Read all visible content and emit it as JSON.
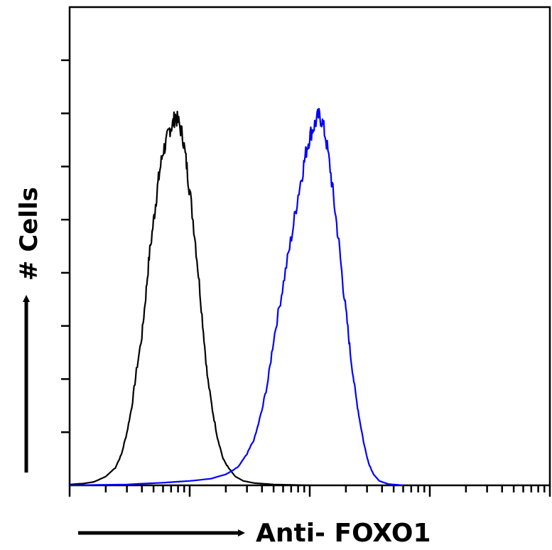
{
  "chart_data": {
    "type": "line",
    "chart_kind": "flow-cytometry-histogram",
    "title": "",
    "xlabel": "Anti- FOXO1",
    "ylabel": "# Cells",
    "x_scale": "log",
    "xlim": [
      1,
      10000
    ],
    "ylim": [
      0,
      100
    ],
    "grid": false,
    "legend": "none",
    "series": [
      {
        "color": "#000000",
        "points": [
          [
            1,
            0.2
          ],
          [
            1.3,
            0.4
          ],
          [
            1.6,
            0.8
          ],
          [
            2,
            2
          ],
          [
            2.4,
            4
          ],
          [
            2.7,
            7
          ],
          [
            3,
            12
          ],
          [
            3.3,
            18
          ],
          [
            3.6,
            26
          ],
          [
            4,
            34
          ],
          [
            4.3,
            43
          ],
          [
            4.6,
            52
          ],
          [
            5,
            60
          ],
          [
            5.3,
            66
          ],
          [
            5.6,
            71
          ],
          [
            6,
            76
          ],
          [
            6.4,
            78
          ],
          [
            6.8,
            81
          ],
          [
            7.2,
            82
          ],
          [
            7.6,
            84
          ],
          [
            8.2,
            82
          ],
          [
            8.8,
            79
          ],
          [
            9.4,
            73
          ],
          [
            10,
            67
          ],
          [
            11,
            57
          ],
          [
            12,
            46
          ],
          [
            13,
            35
          ],
          [
            14,
            25
          ],
          [
            15.5,
            17
          ],
          [
            17,
            11
          ],
          [
            19,
            6
          ],
          [
            21,
            4
          ],
          [
            24,
            2
          ],
          [
            28,
            1
          ],
          [
            35,
            0.5
          ],
          [
            50,
            0.2
          ],
          [
            100,
            0
          ]
        ]
      },
      {
        "color": "#0000ff",
        "points": [
          [
            1,
            0
          ],
          [
            3,
            0.2
          ],
          [
            6,
            0.6
          ],
          [
            10,
            1
          ],
          [
            15,
            1.5
          ],
          [
            20,
            2.5
          ],
          [
            25,
            4
          ],
          [
            30,
            7
          ],
          [
            35,
            11
          ],
          [
            40,
            17
          ],
          [
            45,
            24
          ],
          [
            50,
            33
          ],
          [
            57,
            42
          ],
          [
            64,
            50
          ],
          [
            72,
            58
          ],
          [
            80,
            66
          ],
          [
            88,
            72
          ],
          [
            95,
            77
          ],
          [
            102,
            80
          ],
          [
            110,
            82
          ],
          [
            118,
            84
          ],
          [
            126,
            83
          ],
          [
            136,
            79
          ],
          [
            148,
            72
          ],
          [
            160,
            64
          ],
          [
            175,
            55
          ],
          [
            190,
            45
          ],
          [
            205,
            37
          ],
          [
            220,
            29
          ],
          [
            240,
            21
          ],
          [
            260,
            15
          ],
          [
            285,
            9
          ],
          [
            310,
            5
          ],
          [
            340,
            2.5
          ],
          [
            380,
            1
          ],
          [
            450,
            0.3
          ],
          [
            600,
            0
          ]
        ]
      }
    ]
  }
}
